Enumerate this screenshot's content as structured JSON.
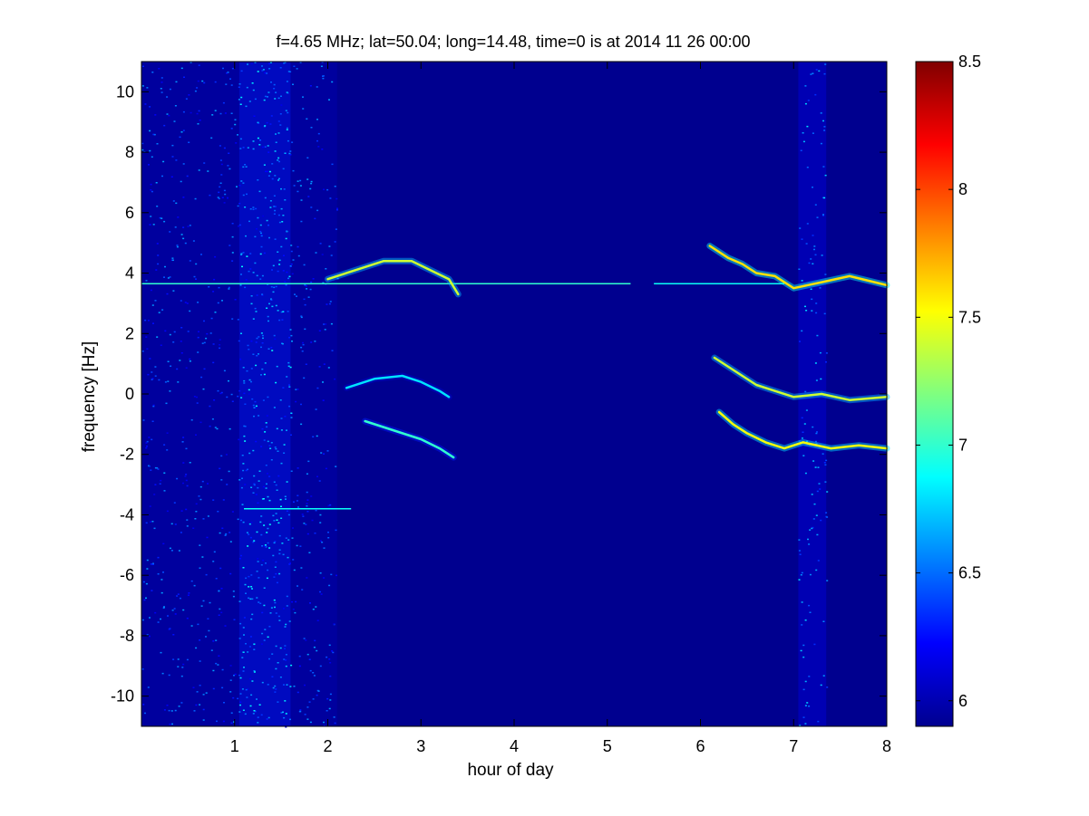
{
  "chart_data": {
    "type": "heatmap",
    "title": "f=4.65 MHz;  lat=50.04; long=14.48, time=0 is at 2014 11 26 00:00",
    "xlabel": "hour of day",
    "ylabel": "frequency [Hz]",
    "xlim": [
      0,
      8
    ],
    "ylim": [
      -11,
      11
    ],
    "xticks": [
      1,
      2,
      3,
      4,
      5,
      6,
      7,
      8
    ],
    "yticks": [
      -10,
      -8,
      -6,
      -4,
      -2,
      0,
      2,
      4,
      6,
      8,
      10
    ],
    "colorbar": {
      "range": [
        5.9,
        8.5
      ],
      "ticks": [
        6,
        6.5,
        7,
        7.5,
        8,
        8.5
      ],
      "ticklabels": [
        "6",
        "6.5",
        "7",
        "7.5",
        "8",
        "8.5"
      ],
      "colormap": "jet"
    },
    "background_value": 5.95,
    "noise_bands": [
      {
        "x": [
          0.0,
          2.1
        ],
        "y": [
          -11,
          11
        ],
        "level": 6.35
      },
      {
        "x": [
          1.05,
          1.6
        ],
        "y": [
          -11,
          11
        ],
        "level": 6.6
      },
      {
        "x": [
          7.05,
          7.35
        ],
        "y": [
          -11,
          11
        ],
        "level": 6.5
      }
    ],
    "constant_lines": [
      {
        "x": [
          0.0,
          5.25
        ],
        "y": 3.65,
        "value": 7.0
      },
      {
        "x": [
          5.5,
          6.9
        ],
        "y": 3.65,
        "value": 6.9
      },
      {
        "x": [
          1.1,
          2.25
        ],
        "y": -3.8,
        "value": 6.9
      }
    ],
    "signal_traces": [
      {
        "x": [
          2.0,
          2.3,
          2.6,
          2.9,
          3.1,
          3.3,
          3.4
        ],
        "y": [
          3.8,
          4.1,
          4.4,
          4.4,
          4.1,
          3.8,
          3.3
        ],
        "value": 7.4
      },
      {
        "x": [
          2.2,
          2.5,
          2.8,
          3.0,
          3.2,
          3.3
        ],
        "y": [
          0.2,
          0.5,
          0.6,
          0.4,
          0.1,
          -0.1
        ],
        "value": 6.8
      },
      {
        "x": [
          2.4,
          2.7,
          3.0,
          3.2,
          3.35
        ],
        "y": [
          -0.9,
          -1.2,
          -1.5,
          -1.8,
          -2.1
        ],
        "value": 7.0
      },
      {
        "x": [
          6.1,
          6.3,
          6.45,
          6.6,
          6.8,
          7.0,
          7.3,
          7.6,
          8.0
        ],
        "y": [
          4.9,
          4.5,
          4.3,
          4.0,
          3.9,
          3.5,
          3.7,
          3.9,
          3.6
        ],
        "value": 7.6
      },
      {
        "x": [
          6.15,
          6.3,
          6.45,
          6.6,
          6.8,
          7.0,
          7.3,
          7.6,
          8.0
        ],
        "y": [
          1.2,
          0.9,
          0.6,
          0.3,
          0.1,
          -0.1,
          0.0,
          -0.2,
          -0.1
        ],
        "value": 7.4
      },
      {
        "x": [
          6.2,
          6.35,
          6.5,
          6.7,
          6.9,
          7.1,
          7.4,
          7.7,
          8.0
        ],
        "y": [
          -0.6,
          -1.0,
          -1.3,
          -1.6,
          -1.8,
          -1.6,
          -1.8,
          -1.7,
          -1.8
        ],
        "value": 7.5
      }
    ]
  }
}
